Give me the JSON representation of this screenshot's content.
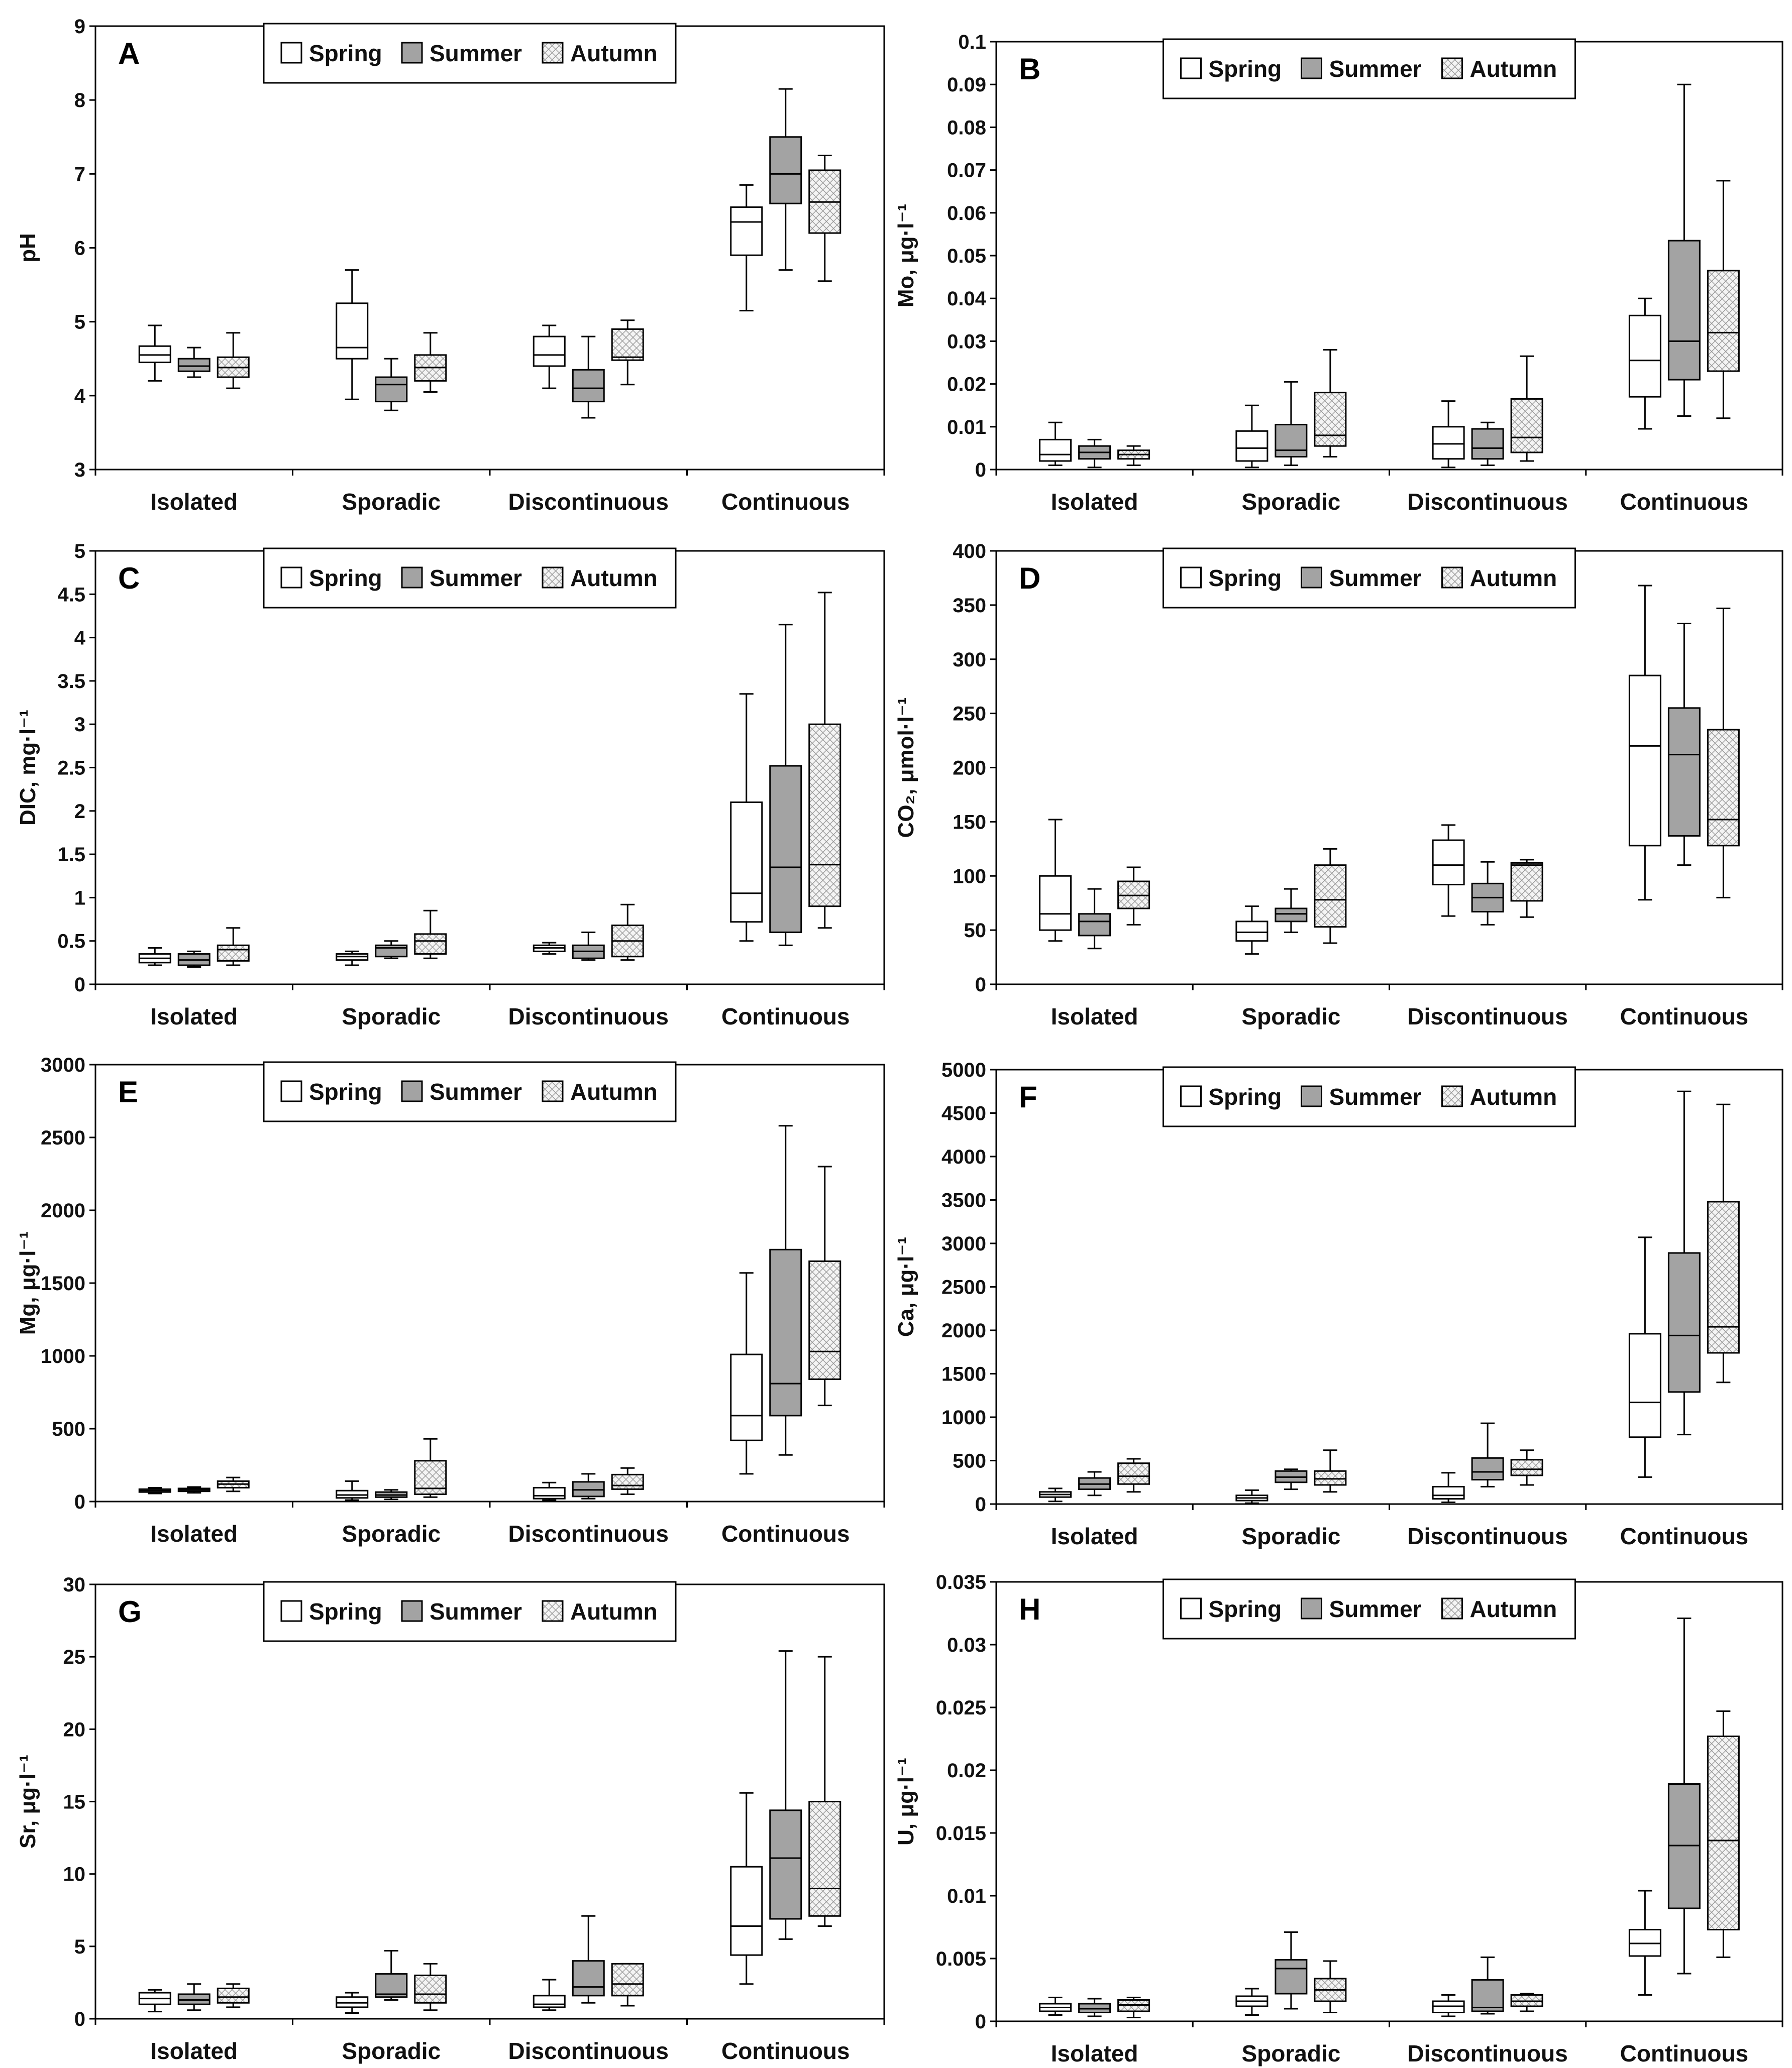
{
  "chart_data": [
    {
      "type": "box",
      "letter": "A",
      "ylabel": "pH",
      "ylim": [
        3,
        9
      ],
      "yticks": [
        "3",
        "4",
        "5",
        "6",
        "7",
        "8",
        "9"
      ],
      "categories": [
        "Isolated",
        "Sporadic",
        "Discontinuous",
        "Continuous"
      ],
      "legend": {
        "position": "top-center",
        "entries": [
          "Spring",
          "Summer",
          "Autumn"
        ]
      },
      "series": [
        {
          "name": "Spring",
          "boxes": [
            [
              4.2,
              4.45,
              4.55,
              4.67,
              4.95
            ],
            [
              3.95,
              4.5,
              4.65,
              5.25,
              5.7
            ],
            [
              4.1,
              4.4,
              4.55,
              4.8,
              4.95
            ],
            [
              5.15,
              5.9,
              6.35,
              6.55,
              6.85
            ]
          ]
        },
        {
          "name": "Summer",
          "boxes": [
            [
              4.25,
              4.33,
              4.4,
              4.5,
              4.65
            ],
            [
              3.8,
              3.92,
              4.15,
              4.25,
              4.5
            ],
            [
              3.7,
              3.92,
              4.1,
              4.35,
              4.8
            ],
            [
              5.7,
              6.6,
              7.0,
              7.5,
              8.15
            ]
          ]
        },
        {
          "name": "Autumn",
          "boxes": [
            [
              4.1,
              4.25,
              4.38,
              4.52,
              4.85
            ],
            [
              4.05,
              4.2,
              4.38,
              4.55,
              4.85
            ],
            [
              4.15,
              4.48,
              4.52,
              4.9,
              5.02
            ],
            [
              5.55,
              6.2,
              6.62,
              7.05,
              7.25
            ]
          ]
        }
      ]
    },
    {
      "type": "box",
      "letter": "B",
      "ylabel": "Mo, μg·l⁻¹",
      "ylim": [
        0,
        0.1
      ],
      "yticks": [
        "0",
        "0.01",
        "0.02",
        "0.03",
        "0.04",
        "0.05",
        "0.06",
        "0.07",
        "0.08",
        "0.09",
        "0.1"
      ],
      "categories": [
        "Isolated",
        "Sporadic",
        "Discontinuous",
        "Continuous"
      ],
      "legend": {
        "position": "top-center",
        "entries": [
          "Spring",
          "Summer",
          "Autumn"
        ]
      },
      "series": [
        {
          "name": "Spring",
          "boxes": [
            [
              0.001,
              0.002,
              0.0035,
              0.007,
              0.011
            ],
            [
              0.0005,
              0.002,
              0.005,
              0.009,
              0.015
            ],
            [
              0.0005,
              0.0025,
              0.006,
              0.01,
              0.016
            ],
            [
              0.0095,
              0.017,
              0.0255,
              0.036,
              0.04
            ]
          ]
        },
        {
          "name": "Summer",
          "boxes": [
            [
              0.0005,
              0.0025,
              0.004,
              0.0055,
              0.007
            ],
            [
              0.001,
              0.003,
              0.0045,
              0.0105,
              0.0205
            ],
            [
              0.001,
              0.0025,
              0.005,
              0.0095,
              0.011
            ],
            [
              0.0125,
              0.021,
              0.03,
              0.0535,
              0.09
            ]
          ]
        },
        {
          "name": "Autumn",
          "boxes": [
            [
              0.001,
              0.0025,
              0.0035,
              0.0045,
              0.0055
            ],
            [
              0.003,
              0.0055,
              0.008,
              0.018,
              0.028
            ],
            [
              0.002,
              0.004,
              0.0075,
              0.0165,
              0.0265
            ],
            [
              0.012,
              0.023,
              0.032,
              0.0465,
              0.0675
            ]
          ]
        }
      ]
    },
    {
      "type": "box",
      "letter": "C",
      "ylabel": "DIC, mg·l⁻¹",
      "ylim": [
        0,
        5
      ],
      "yticks": [
        "0",
        "0.5",
        "1",
        "1.5",
        "2",
        "2.5",
        "3",
        "3.5",
        "4",
        "4.5",
        "5"
      ],
      "categories": [
        "Isolated",
        "Sporadic",
        "Discontinuous",
        "Continuous"
      ],
      "legend": {
        "position": "top-center",
        "entries": [
          "Spring",
          "Summer",
          "Autumn"
        ]
      },
      "series": [
        {
          "name": "Spring",
          "boxes": [
            [
              0.22,
              0.25,
              0.3,
              0.35,
              0.42
            ],
            [
              0.22,
              0.28,
              0.32,
              0.35,
              0.38
            ],
            [
              0.35,
              0.38,
              0.42,
              0.45,
              0.48
            ],
            [
              0.5,
              0.72,
              1.05,
              2.1,
              3.35
            ]
          ]
        },
        {
          "name": "Summer",
          "boxes": [
            [
              0.2,
              0.22,
              0.28,
              0.35,
              0.38
            ],
            [
              0.3,
              0.32,
              0.42,
              0.45,
              0.5
            ],
            [
              0.28,
              0.3,
              0.38,
              0.45,
              0.6
            ],
            [
              0.45,
              0.6,
              1.35,
              2.52,
              4.15
            ]
          ]
        },
        {
          "name": "Autumn",
          "boxes": [
            [
              0.22,
              0.27,
              0.4,
              0.45,
              0.65
            ],
            [
              0.3,
              0.35,
              0.5,
              0.58,
              0.85
            ],
            [
              0.28,
              0.32,
              0.5,
              0.68,
              0.92
            ],
            [
              0.65,
              0.9,
              1.38,
              3.0,
              4.52
            ]
          ]
        }
      ]
    },
    {
      "type": "box",
      "letter": "D",
      "ylabel": "CO₂, μmol·l⁻¹",
      "ylim": [
        0,
        400
      ],
      "yticks": [
        "0",
        "50",
        "100",
        "150",
        "200",
        "250",
        "300",
        "350",
        "400"
      ],
      "categories": [
        "Isolated",
        "Sporadic",
        "Discontinuous",
        "Continuous"
      ],
      "legend": {
        "position": "top-center",
        "entries": [
          "Spring",
          "Summer",
          "Autumn"
        ]
      },
      "series": [
        {
          "name": "Spring",
          "boxes": [
            [
              40,
              50,
              65,
              100,
              152
            ],
            [
              28,
              40,
              48,
              58,
              72
            ],
            [
              63,
              92,
              110,
              133,
              147
            ],
            [
              78,
              128,
              220,
              285,
              368
            ]
          ]
        },
        {
          "name": "Summer",
          "boxes": [
            [
              33,
              45,
              58,
              65,
              88
            ],
            [
              48,
              58,
              65,
              70,
              88
            ],
            [
              55,
              67,
              80,
              93,
              113
            ],
            [
              110,
              137,
              212,
              255,
              333
            ]
          ]
        },
        {
          "name": "Autumn",
          "boxes": [
            [
              55,
              70,
              82,
              95,
              108
            ],
            [
              38,
              53,
              78,
              110,
              125
            ],
            [
              62,
              77,
              110,
              112,
              115
            ],
            [
              80,
              128,
              152,
              235,
              347
            ]
          ]
        }
      ]
    },
    {
      "type": "box",
      "letter": "E",
      "ylabel": "Mg, μg·l⁻¹",
      "ylim": [
        0,
        3000
      ],
      "yticks": [
        "0",
        "500",
        "1000",
        "1500",
        "2000",
        "2500",
        "3000"
      ],
      "categories": [
        "Isolated",
        "Sporadic",
        "Discontinuous",
        "Continuous"
      ],
      "legend": {
        "position": "top-center",
        "entries": [
          "Spring",
          "Summer",
          "Autumn"
        ]
      },
      "series": [
        {
          "name": "Spring",
          "boxes": [
            [
              55,
              65,
              75,
              85,
              95
            ],
            [
              10,
              25,
              45,
              75,
              140
            ],
            [
              10,
              20,
              40,
              95,
              130
            ],
            [
              190,
              420,
              590,
              1010,
              1570
            ]
          ]
        },
        {
          "name": "Summer",
          "boxes": [
            [
              60,
              70,
              80,
              90,
              100
            ],
            [
              15,
              30,
              45,
              65,
              80
            ],
            [
              20,
              35,
              80,
              135,
              190
            ],
            [
              320,
              590,
              810,
              1730,
              2580
            ]
          ]
        },
        {
          "name": "Autumn",
          "boxes": [
            [
              70,
              95,
              120,
              140,
              165
            ],
            [
              30,
              50,
              90,
              280,
              430
            ],
            [
              50,
              85,
              110,
              185,
              230
            ],
            [
              660,
              840,
              1030,
              1650,
              2300
            ]
          ]
        }
      ]
    },
    {
      "type": "box",
      "letter": "F",
      "ylabel": "Ca, μg·l⁻¹",
      "ylim": [
        0,
        5000
      ],
      "yticks": [
        "0",
        "500",
        "1000",
        "1500",
        "2000",
        "2500",
        "3000",
        "3500",
        "4000",
        "4500",
        "5000"
      ],
      "categories": [
        "Isolated",
        "Sporadic",
        "Discontinuous",
        "Continuous"
      ],
      "legend": {
        "position": "top-center",
        "entries": [
          "Spring",
          "Summer",
          "Autumn"
        ]
      },
      "series": [
        {
          "name": "Spring",
          "boxes": [
            [
              30,
              80,
              110,
              140,
              180
            ],
            [
              10,
              40,
              70,
              100,
              160
            ],
            [
              20,
              60,
              100,
              200,
              360
            ],
            [
              310,
              770,
              1170,
              1960,
              3070
            ]
          ]
        },
        {
          "name": "Summer",
          "boxes": [
            [
              100,
              170,
              230,
              300,
              370
            ],
            [
              170,
              250,
              310,
              380,
              400
            ],
            [
              200,
              280,
              370,
              530,
              930
            ],
            [
              800,
              1290,
              1940,
              2890,
              4750
            ]
          ]
        },
        {
          "name": "Autumn",
          "boxes": [
            [
              140,
              230,
              320,
              470,
              520
            ],
            [
              140,
              220,
              290,
              380,
              620
            ],
            [
              220,
              330,
              400,
              510,
              620
            ],
            [
              1400,
              1740,
              2040,
              3480,
              4600
            ]
          ]
        }
      ]
    },
    {
      "type": "box",
      "letter": "G",
      "ylabel": "Sr, μg·l⁻¹",
      "ylim": [
        0,
        30
      ],
      "yticks": [
        "0",
        "5",
        "10",
        "15",
        "20",
        "25",
        "30"
      ],
      "categories": [
        "Isolated",
        "Sporadic",
        "Discontinuous",
        "Continuous"
      ],
      "legend": {
        "position": "top-center",
        "entries": [
          "Spring",
          "Summer",
          "Autumn"
        ]
      },
      "series": [
        {
          "name": "Spring",
          "boxes": [
            [
              0.5,
              1.0,
              1.4,
              1.8,
              2.0
            ],
            [
              0.4,
              0.8,
              1.1,
              1.5,
              1.8
            ],
            [
              0.6,
              0.8,
              1.0,
              1.6,
              2.7
            ],
            [
              2.4,
              4.4,
              6.4,
              10.5,
              15.6
            ]
          ]
        },
        {
          "name": "Summer",
          "boxes": [
            [
              0.6,
              1.0,
              1.3,
              1.7,
              2.4
            ],
            [
              1.3,
              1.5,
              1.7,
              3.1,
              4.7
            ],
            [
              1.1,
              1.6,
              2.2,
              4.0,
              7.1
            ],
            [
              5.5,
              6.9,
              11.1,
              14.4,
              25.4
            ]
          ]
        },
        {
          "name": "Autumn",
          "boxes": [
            [
              0.8,
              1.1,
              1.5,
              2.1,
              2.4
            ],
            [
              0.6,
              1.1,
              1.7,
              3.0,
              3.8
            ],
            [
              0.9,
              1.6,
              2.4,
              3.8,
              3.8
            ],
            [
              6.4,
              7.1,
              9.0,
              15.0,
              25.0
            ]
          ]
        }
      ]
    },
    {
      "type": "box",
      "letter": "H",
      "ylabel": "U, μg·l⁻¹",
      "ylim": [
        0,
        0.035
      ],
      "yticks": [
        "0",
        "0.005",
        "0.01",
        "0.015",
        "0.02",
        "0.025",
        "0.03",
        "0.035"
      ],
      "categories": [
        "Isolated",
        "Sporadic",
        "Discontinuous",
        "Continuous"
      ],
      "legend": {
        "position": "top-center",
        "entries": [
          "Spring",
          "Summer",
          "Autumn"
        ]
      },
      "series": [
        {
          "name": "Spring",
          "boxes": [
            [
              0.0005,
              0.0008,
              0.0011,
              0.0014,
              0.0019
            ],
            [
              0.0005,
              0.0012,
              0.0016,
              0.002,
              0.0026
            ],
            [
              0.0004,
              0.0007,
              0.0012,
              0.0016,
              0.0021
            ],
            [
              0.0021,
              0.0052,
              0.0062,
              0.0073,
              0.0104
            ]
          ]
        },
        {
          "name": "Summer",
          "boxes": [
            [
              0.0004,
              0.0007,
              0.001,
              0.0014,
              0.0018
            ],
            [
              0.001,
              0.0022,
              0.0042,
              0.0049,
              0.0071
            ],
            [
              0.0006,
              0.0008,
              0.0011,
              0.0033,
              0.0051
            ],
            [
              0.0038,
              0.009,
              0.014,
              0.0189,
              0.0321
            ]
          ]
        },
        {
          "name": "Autumn",
          "boxes": [
            [
              0.0003,
              0.0008,
              0.0013,
              0.0017,
              0.0019
            ],
            [
              0.0007,
              0.0016,
              0.0025,
              0.0034,
              0.0048
            ],
            [
              0.0008,
              0.0012,
              0.0016,
              0.0021,
              0.0022
            ],
            [
              0.0051,
              0.0073,
              0.0144,
              0.0227,
              0.0247
            ]
          ]
        }
      ]
    }
  ]
}
